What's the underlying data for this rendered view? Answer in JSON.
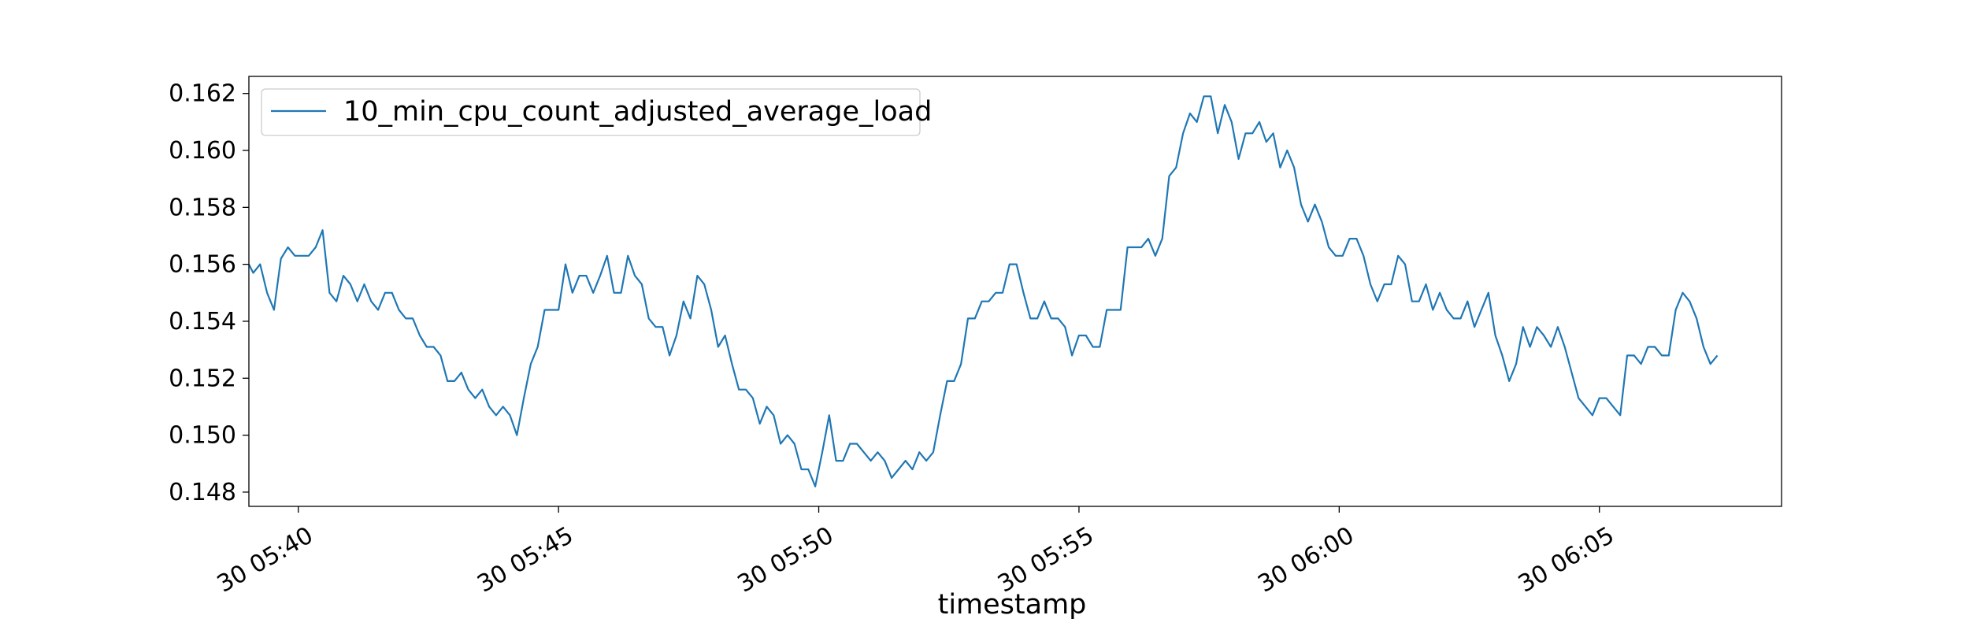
{
  "chart_data": {
    "type": "line",
    "title": "",
    "xlabel": "timestamp",
    "ylabel": "",
    "grid": false,
    "legend_position": "upper-left",
    "series": [
      {
        "name": "10_min_cpu_count_adjusted_average_load",
        "color": "#1f77b4",
        "x_start": "2024-01-30T05:39:00",
        "x_step_seconds": 8,
        "values": [
          0.156,
          0.1557,
          0.156,
          0.155,
          0.1544,
          0.1562,
          0.1566,
          0.1563,
          0.1563,
          0.1563,
          0.1566,
          0.1572,
          0.155,
          0.1547,
          0.1556,
          0.1553,
          0.1547,
          0.1553,
          0.1547,
          0.1544,
          0.155,
          0.155,
          0.1544,
          0.1541,
          0.1541,
          0.1535,
          0.1531,
          0.1531,
          0.1528,
          0.1519,
          0.1519,
          0.1522,
          0.1516,
          0.1513,
          0.1516,
          0.151,
          0.1507,
          0.151,
          0.1507,
          0.15,
          0.1513,
          0.1525,
          0.1531,
          0.1544,
          0.1544,
          0.1544,
          0.156,
          0.155,
          0.1556,
          0.1556,
          0.155,
          0.1556,
          0.1563,
          0.155,
          0.155,
          0.1563,
          0.1556,
          0.1553,
          0.1541,
          0.1538,
          0.1538,
          0.1528,
          0.1535,
          0.1547,
          0.1541,
          0.1556,
          0.1553,
          0.1544,
          0.1531,
          0.1535,
          0.1525,
          0.1516,
          0.1516,
          0.1513,
          0.1504,
          0.151,
          0.1507,
          0.1497,
          0.15,
          0.1497,
          0.1488,
          0.1488,
          0.1482,
          0.1494,
          0.1507,
          0.1491,
          0.1491,
          0.1497,
          0.1497,
          0.1494,
          0.1491,
          0.1494,
          0.1491,
          0.1485,
          0.1488,
          0.1491,
          0.1488,
          0.1494,
          0.1491,
          0.1494,
          0.1507,
          0.1519,
          0.1519,
          0.1525,
          0.1541,
          0.1541,
          0.1547,
          0.1547,
          0.155,
          0.155,
          0.156,
          0.156,
          0.155,
          0.1541,
          0.1541,
          0.1547,
          0.1541,
          0.1541,
          0.1538,
          0.1528,
          0.1535,
          0.1535,
          0.1531,
          0.1531,
          0.1544,
          0.1544,
          0.1544,
          0.1566,
          0.1566,
          0.1566,
          0.1569,
          0.1563,
          0.1569,
          0.1591,
          0.1594,
          0.1606,
          0.1613,
          0.161,
          0.1619,
          0.1619,
          0.1606,
          0.1616,
          0.161,
          0.1597,
          0.1606,
          0.1606,
          0.161,
          0.1603,
          0.1606,
          0.1594,
          0.16,
          0.1594,
          0.1581,
          0.1575,
          0.1581,
          0.1575,
          0.1566,
          0.1563,
          0.1563,
          0.1569,
          0.1569,
          0.1563,
          0.1553,
          0.1547,
          0.1553,
          0.1553,
          0.1563,
          0.156,
          0.1547,
          0.1547,
          0.1553,
          0.1544,
          0.155,
          0.1544,
          0.1541,
          0.1541,
          0.1547,
          0.1538,
          0.1544,
          0.155,
          0.1535,
          0.1528,
          0.1519,
          0.1525,
          0.1538,
          0.1531,
          0.1538,
          0.1535,
          0.1531,
          0.1538,
          0.1531,
          0.1522,
          0.1513,
          0.151,
          0.1507,
          0.1513,
          0.1513,
          0.151,
          0.1507,
          0.1528,
          0.1528,
          0.1525,
          0.1531,
          0.1531,
          0.1528,
          0.1528,
          0.1544,
          0.155,
          0.1547,
          0.1541,
          0.1531,
          0.1525,
          0.1528
        ]
      }
    ],
    "xlim": [
      "2024-01-30T05:39:03",
      "2024-01-30T06:08:30"
    ],
    "ylim": [
      0.1475,
      0.1626
    ],
    "x_ticks": [
      {
        "value": "2024-01-30T05:40:00",
        "label": "30 05:40"
      },
      {
        "value": "2024-01-30T05:45:00",
        "label": "30 05:45"
      },
      {
        "value": "2024-01-30T05:50:00",
        "label": "30 05:50"
      },
      {
        "value": "2024-01-30T05:55:00",
        "label": "30 05:55"
      },
      {
        "value": "2024-01-30T06:00:00",
        "label": "30 06:00"
      },
      {
        "value": "2024-01-30T06:05:00",
        "label": "30 06:05"
      }
    ],
    "y_ticks": [
      {
        "value": 0.148,
        "label": "0.148"
      },
      {
        "value": 0.15,
        "label": "0.150"
      },
      {
        "value": 0.152,
        "label": "0.152"
      },
      {
        "value": 0.154,
        "label": "0.154"
      },
      {
        "value": 0.156,
        "label": "0.156"
      },
      {
        "value": 0.158,
        "label": "0.158"
      },
      {
        "value": 0.16,
        "label": "0.160"
      },
      {
        "value": 0.162,
        "label": "0.162"
      }
    ]
  }
}
